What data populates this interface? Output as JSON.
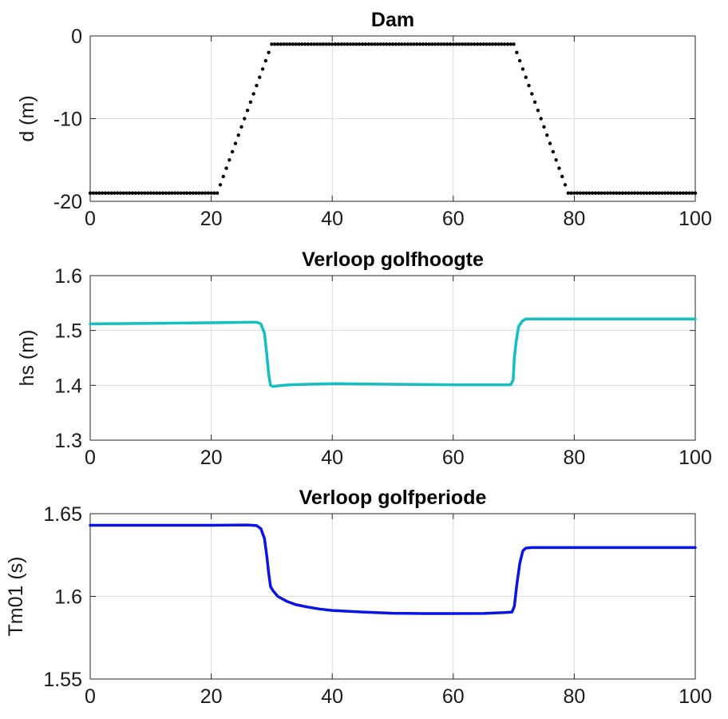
{
  "chart_data": [
    {
      "type": "scatter",
      "title": "Dam",
      "xlabel": "",
      "ylabel": "d (m)",
      "xlim": [
        0,
        100
      ],
      "ylim": [
        -20,
        0
      ],
      "xticks": [
        0,
        20,
        40,
        60,
        80,
        100
      ],
      "yticks": [
        -20,
        -10,
        0
      ],
      "grid": true,
      "color": "#000000",
      "marker": "dot",
      "segments": [
        {
          "x_start": 0,
          "x_end": 21,
          "y_start": -19,
          "y_end": -19
        },
        {
          "x_start": 21,
          "x_end": 30,
          "y_start": -19,
          "y_end": -1
        },
        {
          "x_start": 30,
          "x_end": 70,
          "y_start": -1,
          "y_end": -1
        },
        {
          "x_start": 70,
          "x_end": 79,
          "y_start": -1,
          "y_end": -19
        },
        {
          "x_start": 79,
          "x_end": 100,
          "y_start": -19,
          "y_end": -19
        }
      ],
      "x_step": 0.5
    },
    {
      "type": "line",
      "title": "Verloop golfhoogte",
      "xlabel": "",
      "ylabel": "hs (m)",
      "xlim": [
        0,
        100
      ],
      "ylim": [
        1.3,
        1.6
      ],
      "xticks": [
        0,
        20,
        40,
        60,
        80,
        100
      ],
      "yticks": [
        1.3,
        1.4,
        1.5,
        1.6
      ],
      "grid": true,
      "color": "#14bfbf",
      "x": [
        0,
        10,
        20,
        26,
        27.5,
        28.2,
        28.8,
        29.2,
        29.5,
        29.8,
        30.2,
        31,
        33,
        36,
        40,
        50,
        60,
        68,
        69.5,
        69.9,
        70.1,
        70.4,
        70.8,
        71.4,
        72,
        73,
        80,
        90,
        100
      ],
      "y": [
        1.512,
        1.513,
        1.514,
        1.515,
        1.515,
        1.512,
        1.495,
        1.455,
        1.42,
        1.4,
        1.398,
        1.399,
        1.401,
        1.402,
        1.403,
        1.402,
        1.401,
        1.401,
        1.401,
        1.41,
        1.45,
        1.48,
        1.507,
        1.517,
        1.521,
        1.521,
        1.521,
        1.521,
        1.521
      ]
    },
    {
      "type": "line",
      "title": "Verloop golfperiode",
      "xlabel": "",
      "ylabel": "Tm01 (s)",
      "xlim": [
        0,
        100
      ],
      "ylim": [
        1.55,
        1.65
      ],
      "xticks": [
        0,
        20,
        40,
        60,
        80,
        100
      ],
      "yticks": [
        1.55,
        1.6,
        1.65
      ],
      "ytick_labels": [
        "1.55",
        "1.6",
        "1.65"
      ],
      "grid": true,
      "color": "#0a14e6",
      "x": [
        0,
        10,
        20,
        26,
        27.5,
        28.2,
        28.8,
        29.2,
        29.5,
        29.8,
        30.2,
        31,
        32.5,
        34,
        36,
        38,
        40,
        45,
        50,
        55,
        60,
        65,
        68.5,
        69.7,
        70.1,
        70.5,
        71,
        71.5,
        72,
        73,
        80,
        90,
        100
      ],
      "y": [
        1.643,
        1.643,
        1.643,
        1.6432,
        1.6428,
        1.641,
        1.635,
        1.624,
        1.614,
        1.606,
        1.6035,
        1.6,
        1.597,
        1.595,
        1.5935,
        1.5923,
        1.5915,
        1.5905,
        1.5898,
        1.5896,
        1.5896,
        1.5897,
        1.5902,
        1.5905,
        1.594,
        1.607,
        1.62,
        1.6275,
        1.6292,
        1.6295,
        1.6295,
        1.6295,
        1.6295
      ]
    }
  ]
}
